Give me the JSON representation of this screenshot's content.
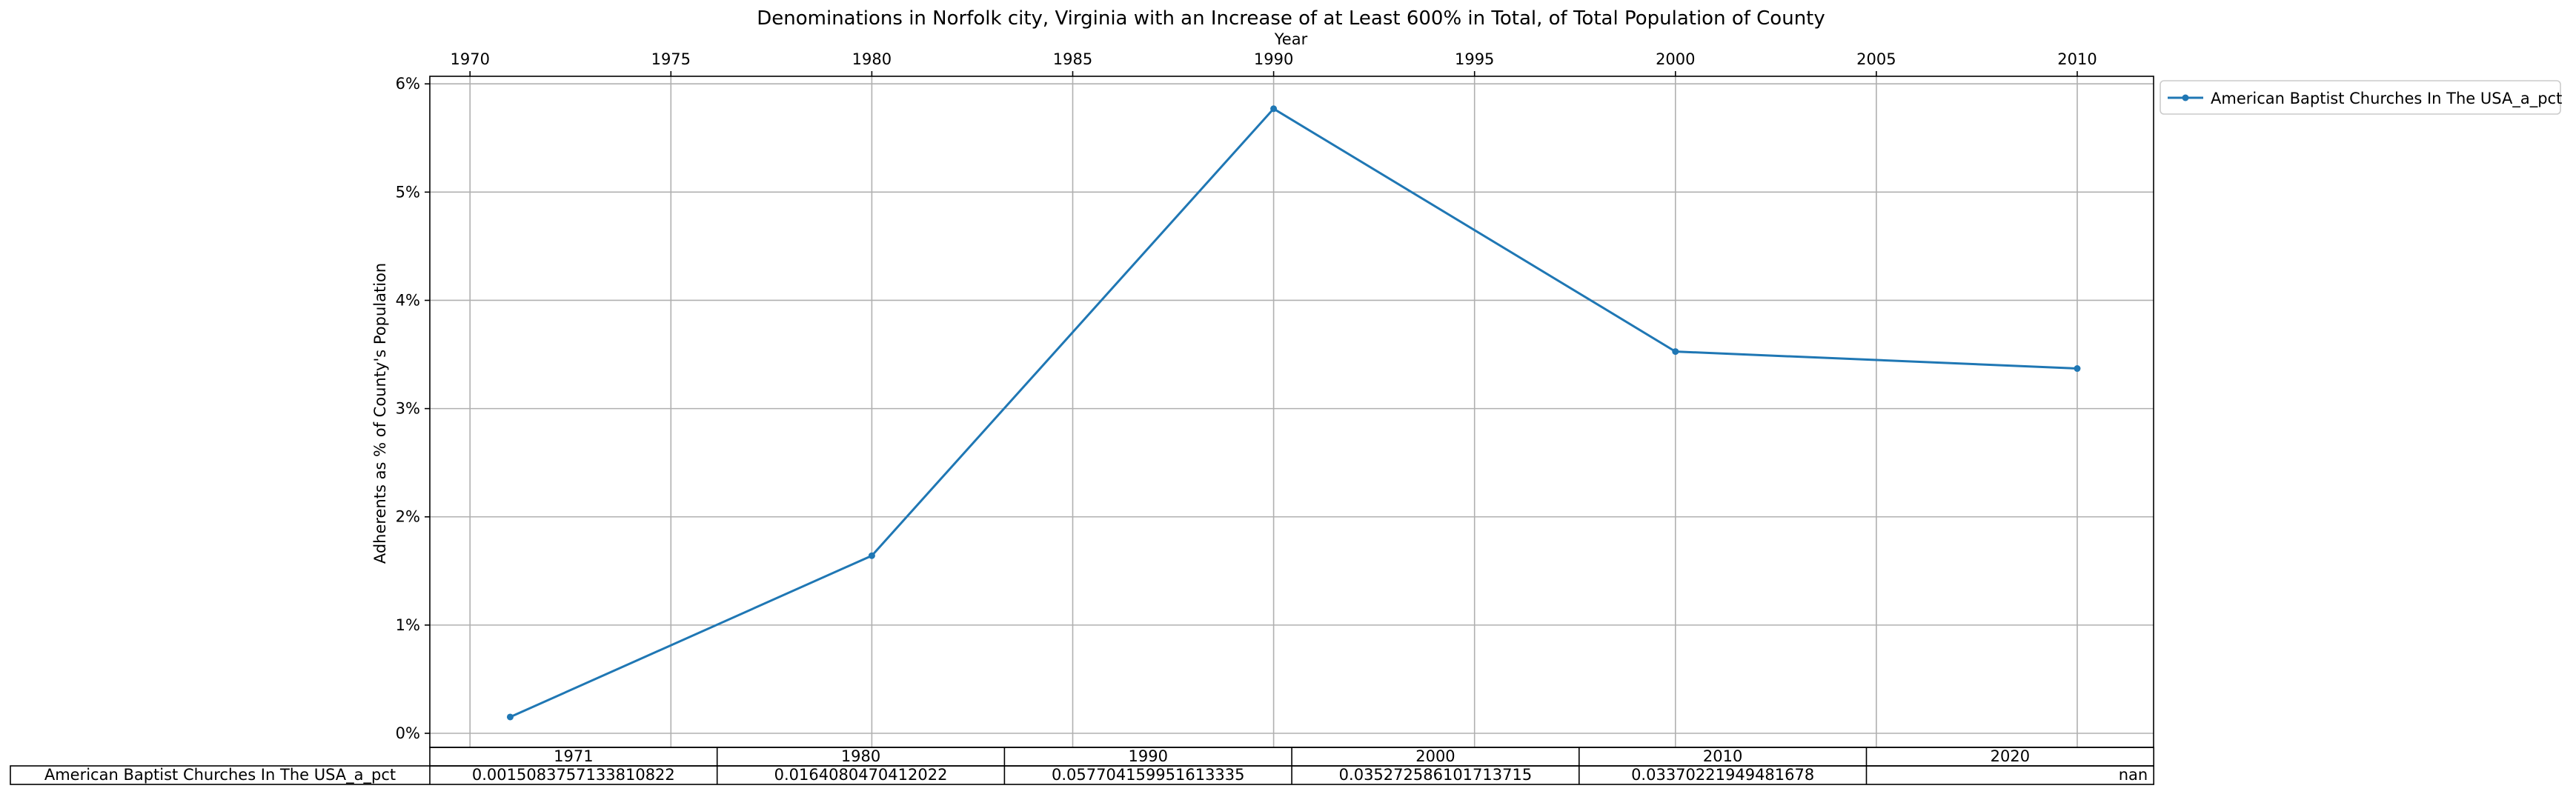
{
  "chart_data": {
    "type": "line",
    "title": "Denominations in Norfolk city, Virginia with an Increase of at Least 600% in Total, of Total Population of County",
    "xlabel": "Year",
    "ylabel": "Adherents as % of County's Population",
    "x_ticks": [
      "1970",
      "1975",
      "1980",
      "1985",
      "1990",
      "1995",
      "2000",
      "2005",
      "2010"
    ],
    "y_ticks": [
      "0%",
      "1%",
      "2%",
      "3%",
      "4%",
      "5%",
      "6%"
    ],
    "xlim": [
      1969,
      2011.9
    ],
    "ylim": [
      -0.0013,
      0.0607
    ],
    "grid": true,
    "x_axis_position": "top",
    "legend_position": "outside-top-right",
    "color": "#1f77b4",
    "series": [
      {
        "name": "American Baptist Churches In The USA_a_pct",
        "x": [
          1971,
          1980,
          1990,
          2000,
          2010
        ],
        "values": [
          0.0015083757133810822,
          0.0164080470412022,
          0.057704159951613335,
          0.035272586101713715,
          0.03370221949481678
        ]
      }
    ],
    "table": {
      "columns": [
        "1971",
        "1980",
        "1990",
        "2000",
        "2010",
        "2020"
      ],
      "rows": [
        {
          "label": "American Baptist Churches In The USA_a_pct",
          "cells": [
            "0.0015083757133810822",
            "0.0164080470412022",
            "0.057704159951613335",
            "0.035272586101713715",
            "0.03370221949481678",
            "nan"
          ]
        }
      ]
    }
  }
}
